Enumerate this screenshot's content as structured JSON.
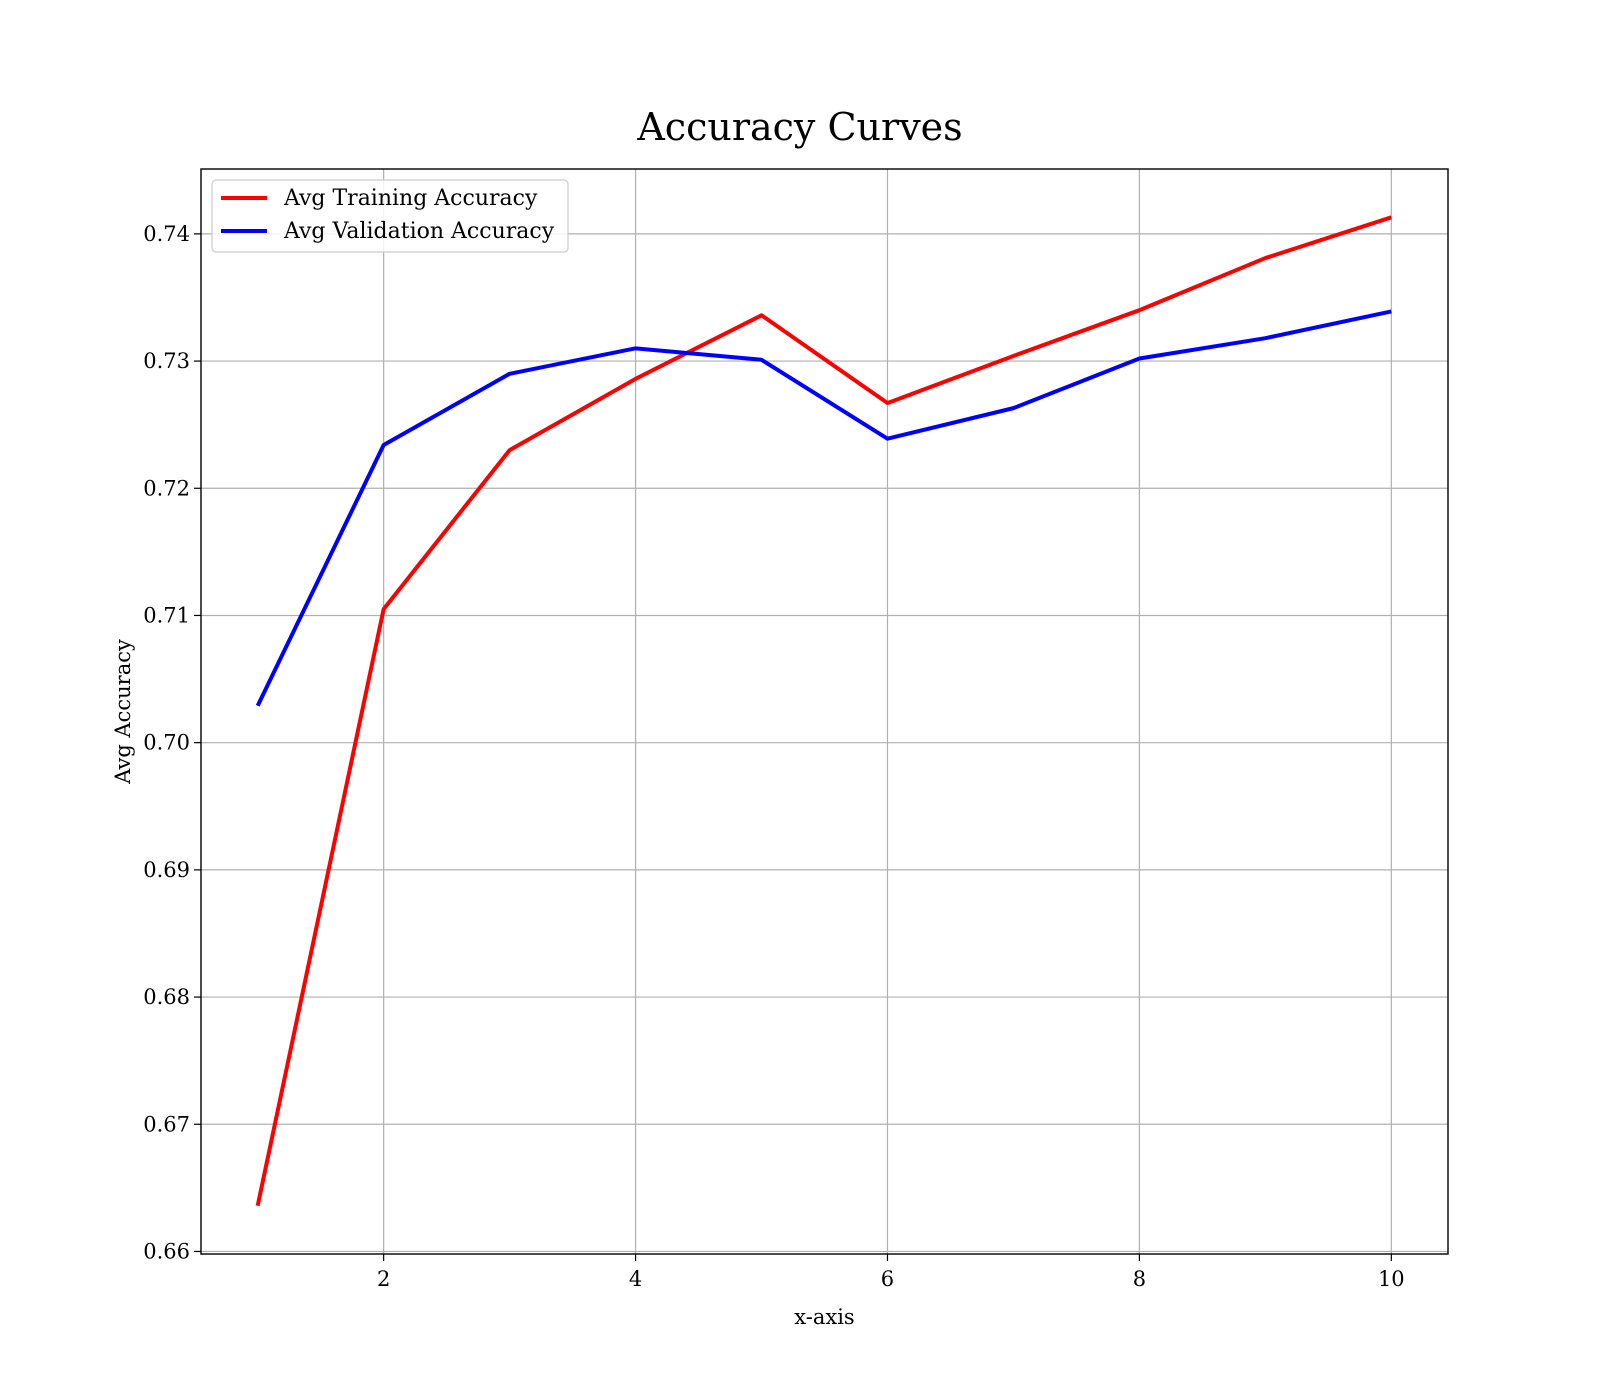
{
  "chart_data": {
    "type": "line",
    "title": "Accuracy Curves",
    "xlabel": "x-axis",
    "ylabel": "Avg Accuracy",
    "x": [
      1,
      2,
      3,
      4,
      5,
      6,
      7,
      8,
      9,
      10
    ],
    "xlim": [
      0.55,
      10.45
    ],
    "ylim": [
      0.6598,
      0.7451
    ],
    "xticks": [
      2,
      4,
      6,
      8,
      10
    ],
    "xtick_labels": [
      "2",
      "4",
      "6",
      "8",
      "10"
    ],
    "yticks": [
      0.66,
      0.67,
      0.68,
      0.69,
      0.7,
      0.71,
      0.72,
      0.73,
      0.74
    ],
    "ytick_labels": [
      "0.66",
      "0.67",
      "0.68",
      "0.69",
      "0.70",
      "0.71",
      "0.72",
      "0.73",
      "0.74"
    ],
    "grid": true,
    "legend_position": "top-left",
    "series": [
      {
        "name": "Avg Training Accuracy",
        "color": "#ff0000",
        "values": [
          0.6636,
          0.7105,
          0.723,
          0.7286,
          0.7336,
          0.7267,
          0.7304,
          0.734,
          0.7381,
          0.7413
        ]
      },
      {
        "name": "Avg Validation Accuracy",
        "color": "#0000ff",
        "values": [
          0.7029,
          0.7234,
          0.729,
          0.731,
          0.7301,
          0.7239,
          0.7263,
          0.7302,
          0.7318,
          0.7339
        ]
      }
    ]
  }
}
